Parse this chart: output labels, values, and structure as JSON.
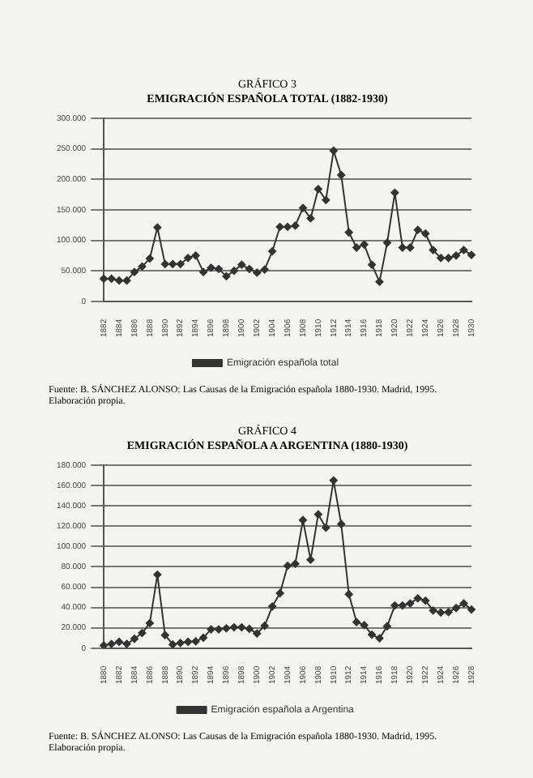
{
  "chart_data": [
    {
      "type": "line",
      "title": "GRÁFICO 3",
      "subtitle": "EMIGRACIÓN ESPAÑOLA TOTAL (1882-1930)",
      "categories": [
        "1882",
        null,
        "1884",
        null,
        "1886",
        null,
        "1888",
        null,
        "1890",
        null,
        "1892",
        null,
        "1894",
        null,
        "1896",
        null,
        "1898",
        null,
        "1900",
        null,
        "1902",
        null,
        "1904",
        null,
        "1906",
        null,
        "1908",
        null,
        "1910",
        null,
        "1912",
        null,
        "1914",
        null,
        "1916",
        null,
        "1918",
        null,
        "1920",
        null,
        "1922",
        null,
        "1924",
        null,
        "1926",
        null,
        "1928",
        null,
        "1930"
      ],
      "series": [
        {
          "name": "Emigración española total",
          "color": "#333333",
          "values": [
            37000,
            37000,
            34000,
            34000,
            48000,
            57000,
            70000,
            121000,
            61000,
            61000,
            61000,
            71000,
            75000,
            48000,
            55000,
            53000,
            41000,
            50000,
            60000,
            53000,
            47000,
            52000,
            82000,
            122000,
            122000,
            124000,
            153000,
            136000,
            184000,
            166000,
            247000,
            207000,
            113000,
            88000,
            93000,
            60000,
            32000,
            96000,
            178000,
            88000,
            88000,
            117000,
            111000,
            84000,
            71000,
            71000,
            75000,
            84000,
            76000
          ]
        }
      ],
      "ylim": [
        0,
        300000
      ],
      "yticks": [
        0,
        {
          "value": 50000,
          "label": "50.000"
        },
        {
          "value": 100000,
          "label": "100.000"
        },
        {
          "value": 150000,
          "label": "150.000"
        },
        {
          "value": 200000,
          "label": "200.000"
        },
        {
          "value": 250000,
          "label": "250.000"
        },
        {
          "value": 300000,
          "label": "300.000"
        }
      ],
      "grid": "y",
      "legend": "bottom",
      "marker": "diamond",
      "line_style": "solid",
      "annotations": [
        "Fuente: B. SÁNCHEZ ALONSO: Las Causas de la Emigración española 1880-1930. Madrid, 1995. Elaboración propia."
      ]
    },
    {
      "type": "line",
      "title": "GRÁFICO 4",
      "subtitle": "EMIGRACIÓN ESPAÑOLA A ARGENTINA (1880-1930)",
      "categories": [
        "1880",
        null,
        "1882",
        null,
        "1884",
        null,
        "1886",
        null,
        "1888",
        null,
        "1890",
        null,
        "1892",
        null,
        "1894",
        null,
        "1896",
        null,
        "1898",
        null,
        "1900",
        null,
        "1902",
        null,
        "1904",
        null,
        "1906",
        null,
        "1908",
        null,
        "1910",
        null,
        "1912",
        null,
        "1914",
        null,
        "1916",
        null,
        "1918",
        null,
        "1920",
        null,
        "1922",
        null,
        "1924",
        null,
        "1926",
        null,
        "1928"
      ],
      "series": [
        {
          "name": "Emigración española a Argentina",
          "color": "#333333",
          "values": [
            2600,
            4100,
            6200,
            4100,
            9200,
            14900,
            24600,
            72300,
            12800,
            3600,
            5100,
            6200,
            6700,
            10300,
            18500,
            18500,
            19500,
            20500,
            20500,
            19000,
            14400,
            22000,
            41000,
            54000,
            81000,
            83000,
            126000,
            87000,
            131600,
            118500,
            165000,
            122000,
            53000,
            25600,
            22600,
            13300,
            9700,
            21500,
            42000,
            42000,
            44000,
            49000,
            46700,
            37000,
            35000,
            35400,
            39500,
            44000,
            38000
          ]
        }
      ],
      "ylim": [
        0,
        180000
      ],
      "yticks": [
        0,
        {
          "value": 20000,
          "label": "20.000"
        },
        {
          "value": 40000,
          "label": "40.000"
        },
        {
          "value": 60000,
          "label": "60.000"
        },
        {
          "value": 80000,
          "label": "80.000"
        },
        {
          "value": 100000,
          "label": "100.000"
        },
        {
          "value": 120000,
          "label": "120.000"
        },
        {
          "value": 140000,
          "label": "140.000"
        },
        {
          "value": 160000,
          "label": "160.000"
        },
        {
          "value": 180000,
          "label": "180.000"
        }
      ],
      "grid": "y",
      "legend": "bottom",
      "marker": "diamond",
      "line_style": "solid",
      "annotations": [
        "Fuente: B. SÁNCHEZ ALONSO: Las Causas de la Emigración española 1880-1930. Madrid, 1995. Elaboración propia."
      ]
    }
  ]
}
